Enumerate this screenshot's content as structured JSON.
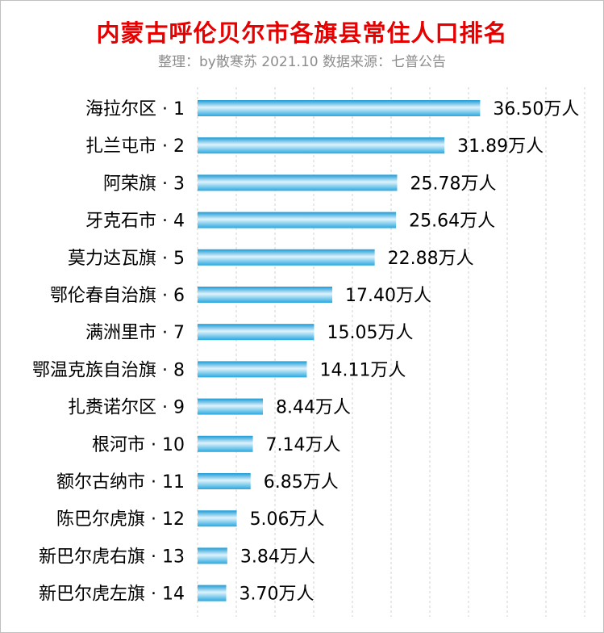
{
  "chart_data": {
    "type": "bar",
    "orientation": "horizontal",
    "title": "内蒙古呼伦贝尔市各旗县常住人口排名",
    "subtitle": "整理：by散寒苏  2021.10  数据来源：七普公告",
    "categories": [
      "海拉尔区 · 1",
      "扎兰屯市 · 2",
      "阿荣旗 · 3",
      "牙克石市 · 4",
      "莫力达瓦旗 · 5",
      "鄂伦春自治旗 · 6",
      "满洲里市 · 7",
      "鄂温克族自治旗 · 8",
      "扎赉诺尔区 · 9",
      "根河市 · 10",
      "额尔古纳市 · 11",
      "陈巴尔虎旗 · 12",
      "新巴尔虎右旗 · 13",
      "新巴尔虎左旗 · 14"
    ],
    "values": [
      36.5,
      31.89,
      25.78,
      25.64,
      22.88,
      17.4,
      15.05,
      14.11,
      8.44,
      7.14,
      6.85,
      5.06,
      3.84,
      3.7
    ],
    "data_labels": [
      "36.50万人",
      "31.89万人",
      "25.78万人",
      "25.64万人",
      "22.88万人",
      "17.40万人",
      "15.05万人",
      "14.11万人",
      "8.44万人",
      "7.14万人",
      "6.85万人",
      "5.06万人",
      "3.84万人",
      "3.70万人"
    ],
    "xlim": [
      0,
      50
    ],
    "grid": true,
    "colors": {
      "bar": "#29a8e0",
      "bar_highlight": "#dff3fc",
      "title": "#e60000",
      "subtitle": "#8c8c8c",
      "grid": "#d0d0d0"
    }
  }
}
